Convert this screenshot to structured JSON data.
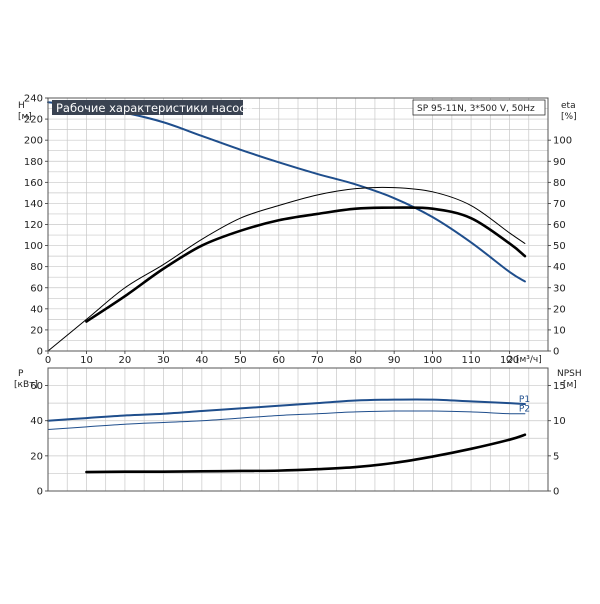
{
  "chart_data": {
    "type": "line",
    "title": "Рабочие характеристики насоса",
    "model": "SP 95-11N, 3*500 V, 50Hz",
    "title_bg": "#3a4352",
    "title_color": "#ffffff",
    "grid": true,
    "top": {
      "y_left_label": "H",
      "y_left_unit": "[м]",
      "y_right_label": "eta",
      "y_right_unit": "[%]",
      "x_label": "Q [м³/ч]",
      "xlim": [
        0,
        130
      ],
      "ylim_left": [
        0,
        240
      ],
      "ylim_right": [
        0,
        120
      ],
      "x_ticks": [
        "0",
        "10",
        "20",
        "30",
        "40",
        "50",
        "60",
        "70",
        "80",
        "90",
        "100",
        "110",
        "120"
      ],
      "y_left_ticks": [
        "0",
        "20",
        "40",
        "60",
        "80",
        "100",
        "120",
        "140",
        "160",
        "180",
        "200",
        "220",
        "240"
      ],
      "y_right_ticks": [
        "0",
        "10",
        "20",
        "30",
        "40",
        "50",
        "60",
        "70",
        "80",
        "90",
        "100"
      ],
      "series": [
        {
          "axis": "left",
          "color": "#1f4e8c",
          "width": 2,
          "x": [
            0,
            10,
            20,
            30,
            40,
            50,
            60,
            70,
            80,
            90,
            100,
            110,
            120,
            124
          ],
          "y": [
            236,
            232,
            226,
            217,
            204,
            191,
            179,
            168,
            158,
            145,
            127,
            103,
            75,
            66
          ]
        },
        {
          "axis": "right",
          "color": "#000000",
          "width": 1,
          "x": [
            0,
            10,
            20,
            30,
            40,
            50,
            60,
            70,
            80,
            90,
            100,
            110,
            120,
            124
          ],
          "y": [
            0,
            15,
            30,
            41,
            53,
            63,
            69,
            74,
            77,
            77.5,
            75.5,
            69,
            56,
            51
          ]
        },
        {
          "axis": "right",
          "color": "#000000",
          "width": 2.6,
          "x": [
            10,
            20,
            30,
            40,
            50,
            60,
            70,
            80,
            90,
            100,
            110,
            120,
            124
          ],
          "y": [
            14,
            26,
            39,
            50,
            57,
            62,
            65,
            67.5,
            68,
            67.5,
            63,
            51,
            45
          ]
        }
      ]
    },
    "bottom": {
      "y_left_label": "P",
      "y_left_unit": "[кВт]",
      "y_right_label": "NPSH",
      "y_right_unit": "[м]",
      "ylim_left": [
        0,
        70
      ],
      "ylim_right": [
        0,
        17.5
      ],
      "y_left_ticks": [
        "0",
        "20",
        "40",
        "60"
      ],
      "y_right_ticks": [
        "0",
        "5",
        "10",
        "15"
      ],
      "series": [
        {
          "name": "P1",
          "axis": "left",
          "color": "#1f4e8c",
          "width": 2,
          "x": [
            0,
            10,
            20,
            30,
            40,
            50,
            60,
            70,
            80,
            90,
            100,
            110,
            120,
            124
          ],
          "y": [
            40,
            41.5,
            43,
            44,
            45.5,
            47,
            48.5,
            50,
            51.5,
            52,
            52,
            51,
            50,
            49.5
          ]
        },
        {
          "name": "P2",
          "axis": "left",
          "color": "#1f4e8c",
          "width": 1,
          "x": [
            0,
            10,
            20,
            30,
            40,
            50,
            60,
            70,
            80,
            90,
            100,
            110,
            120,
            124
          ],
          "y": [
            35,
            36.5,
            38,
            39,
            40,
            41.5,
            43,
            44,
            45,
            45.5,
            45.5,
            45,
            44,
            44
          ]
        },
        {
          "axis": "right",
          "color": "#000000",
          "width": 2.6,
          "x": [
            10,
            20,
            30,
            40,
            50,
            60,
            70,
            80,
            90,
            100,
            110,
            120,
            124
          ],
          "y": [
            2.7,
            2.75,
            2.75,
            2.8,
            2.85,
            2.9,
            3.1,
            3.4,
            4.0,
            4.9,
            6.0,
            7.3,
            8.0
          ]
        }
      ]
    }
  }
}
